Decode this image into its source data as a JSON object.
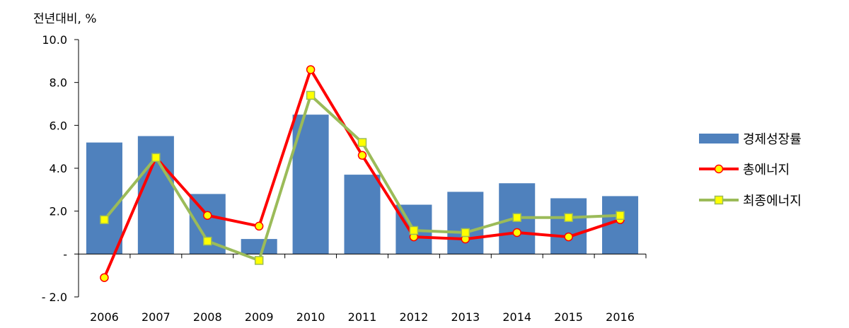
{
  "chart_data": {
    "type": "bar",
    "title": "",
    "ylabel": "전년대비, %",
    "xlabel": "",
    "ylim": [
      -2.0,
      10.0
    ],
    "yticks": [
      {
        "value": 10.0,
        "label": "10.0"
      },
      {
        "value": 8.0,
        "label": "8.0"
      },
      {
        "value": 6.0,
        "label": "6.0"
      },
      {
        "value": 4.0,
        "label": "4.0"
      },
      {
        "value": 2.0,
        "label": "2.0"
      },
      {
        "value": 0,
        "label": "-"
      },
      {
        "value": -2.0,
        "label": "- 2.0"
      }
    ],
    "categories": [
      "2006",
      "2007",
      "2008",
      "2009",
      "2010",
      "2011",
      "2012",
      "2013",
      "2014",
      "2015",
      "2016"
    ],
    "series": [
      {
        "name": "경제성장률",
        "kind": "bar",
        "color": "#4f81bd",
        "values": [
          5.2,
          5.5,
          2.8,
          0.7,
          6.5,
          3.7,
          2.3,
          2.9,
          3.3,
          2.6,
          2.7
        ]
      },
      {
        "name": "총에너지",
        "kind": "line-circle",
        "color": "#ff0000",
        "marker_fill": "#ffff00",
        "values": [
          -1.1,
          4.5,
          1.8,
          1.3,
          8.6,
          4.6,
          0.8,
          0.7,
          1.0,
          0.8,
          1.6
        ]
      },
      {
        "name": "최종에너지",
        "kind": "line-square",
        "color": "#9bbb59",
        "marker_fill": "#ffff00",
        "values": [
          1.6,
          4.5,
          0.6,
          -0.3,
          7.4,
          5.2,
          1.1,
          1.0,
          1.7,
          1.7,
          1.8
        ]
      }
    ],
    "grid": false,
    "legend": "right"
  }
}
